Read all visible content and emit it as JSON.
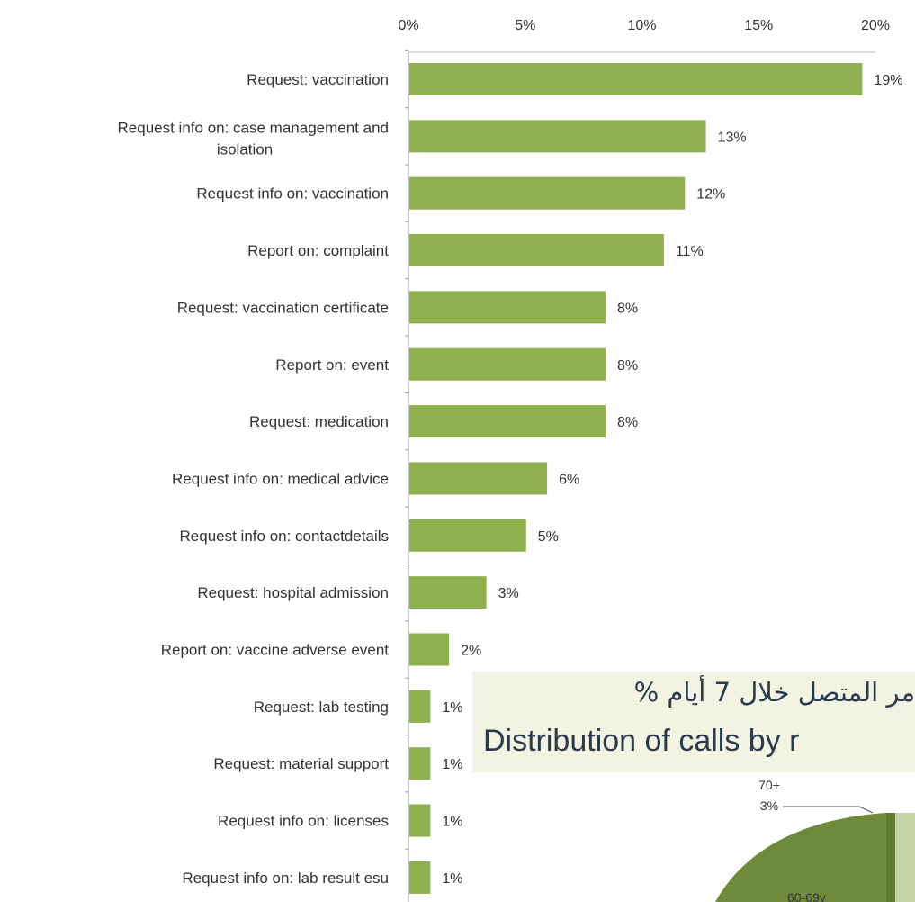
{
  "chart_data": {
    "type": "bar",
    "orientation": "horizontal",
    "categories": [
      "Request: vaccination",
      "Request info on: case management and isolation",
      "Request info on: vaccination",
      "Report on: complaint",
      "Request: vaccination certificate",
      "Report on: event",
      "Request: medication",
      "Request info on: medical advice",
      "Request info on: contactdetails",
      "Request: hospital admission",
      "Report on: vaccine adverse event",
      "Request: lab testing",
      "Request: material support",
      "Request info on: licenses",
      "Request info on: lab result esu"
    ],
    "values": [
      19.4,
      12.7,
      11.8,
      10.9,
      8.4,
      8.4,
      8.4,
      5.9,
      5.0,
      3.3,
      1.7,
      0.9,
      0.9,
      0.9,
      0.9
    ],
    "value_labels": [
      "19%",
      "13%",
      "12%",
      "11%",
      "8%",
      "8%",
      "8%",
      "6%",
      "5%",
      "3%",
      "2%",
      "1%",
      "1%",
      "1%",
      "1%"
    ],
    "xlim": [
      0,
      20
    ],
    "xticks": [
      "0%",
      "5%",
      "10%",
      "15%",
      "20%"
    ],
    "x_axis_position": "top",
    "grid": false,
    "bar_color": "#8fb04e",
    "title": "",
    "xlabel": "",
    "ylabel": ""
  },
  "overlay": {
    "arabic_title": "مر المتصل خلال 7 أيام %",
    "english_title": "Distribution of calls by r",
    "background": "#f3f3e3",
    "text_color": "#2b3a4a"
  },
  "pie_fragment": {
    "label_age": "70+",
    "label_pct": "3%",
    "label_cut": "60-69y",
    "colors": [
      "#6e8a3a",
      "#5f7a2e",
      "#c7d4a8"
    ]
  }
}
